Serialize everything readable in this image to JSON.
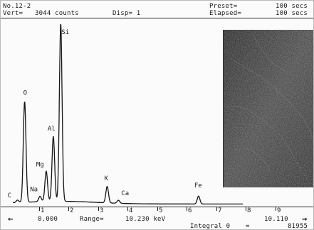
{
  "header": {
    "sample_id": "No.12-2",
    "vert_label": "Vert=",
    "vert_value": "3044 counts",
    "disp_label": "Disp= 1",
    "preset_label": "Preset=",
    "preset_value": "100 secs",
    "elapsed_label": "Elapsed=",
    "elapsed_value": "100 secs"
  },
  "chart_data": {
    "type": "line",
    "xlabel": "keV",
    "x_ticks": [
      "1",
      "2",
      "3",
      "4",
      "5",
      "6",
      "7",
      "8",
      "9"
    ],
    "xlim": [
      0.0,
      10.11
    ],
    "ylim": [
      0,
      3044
    ],
    "peaks": [
      {
        "element": "C",
        "x": 0.28,
        "y": 60
      },
      {
        "element": "O",
        "x": 0.52,
        "y": 1680
      },
      {
        "element": "Na",
        "x": 1.04,
        "y": 110
      },
      {
        "element": "Mg",
        "x": 1.25,
        "y": 520
      },
      {
        "element": "Al",
        "x": 1.49,
        "y": 1090
      },
      {
        "element": "Si",
        "x": 1.74,
        "y": 2950
      },
      {
        "element": "K",
        "x": 3.31,
        "y": 290
      },
      {
        "element": "Ca",
        "x": 3.69,
        "y": 70
      },
      {
        "element": "Fe",
        "x": 6.4,
        "y": 150
      }
    ]
  },
  "footer": {
    "left_arrow": "←",
    "range_start": "0.000",
    "range_label": "Range=",
    "range_value": "10.230 keV",
    "range_end": "10.110",
    "right_arrow": "→",
    "integral_label": "Integral 0",
    "integral_eq": "=",
    "integral_value": "81955"
  }
}
